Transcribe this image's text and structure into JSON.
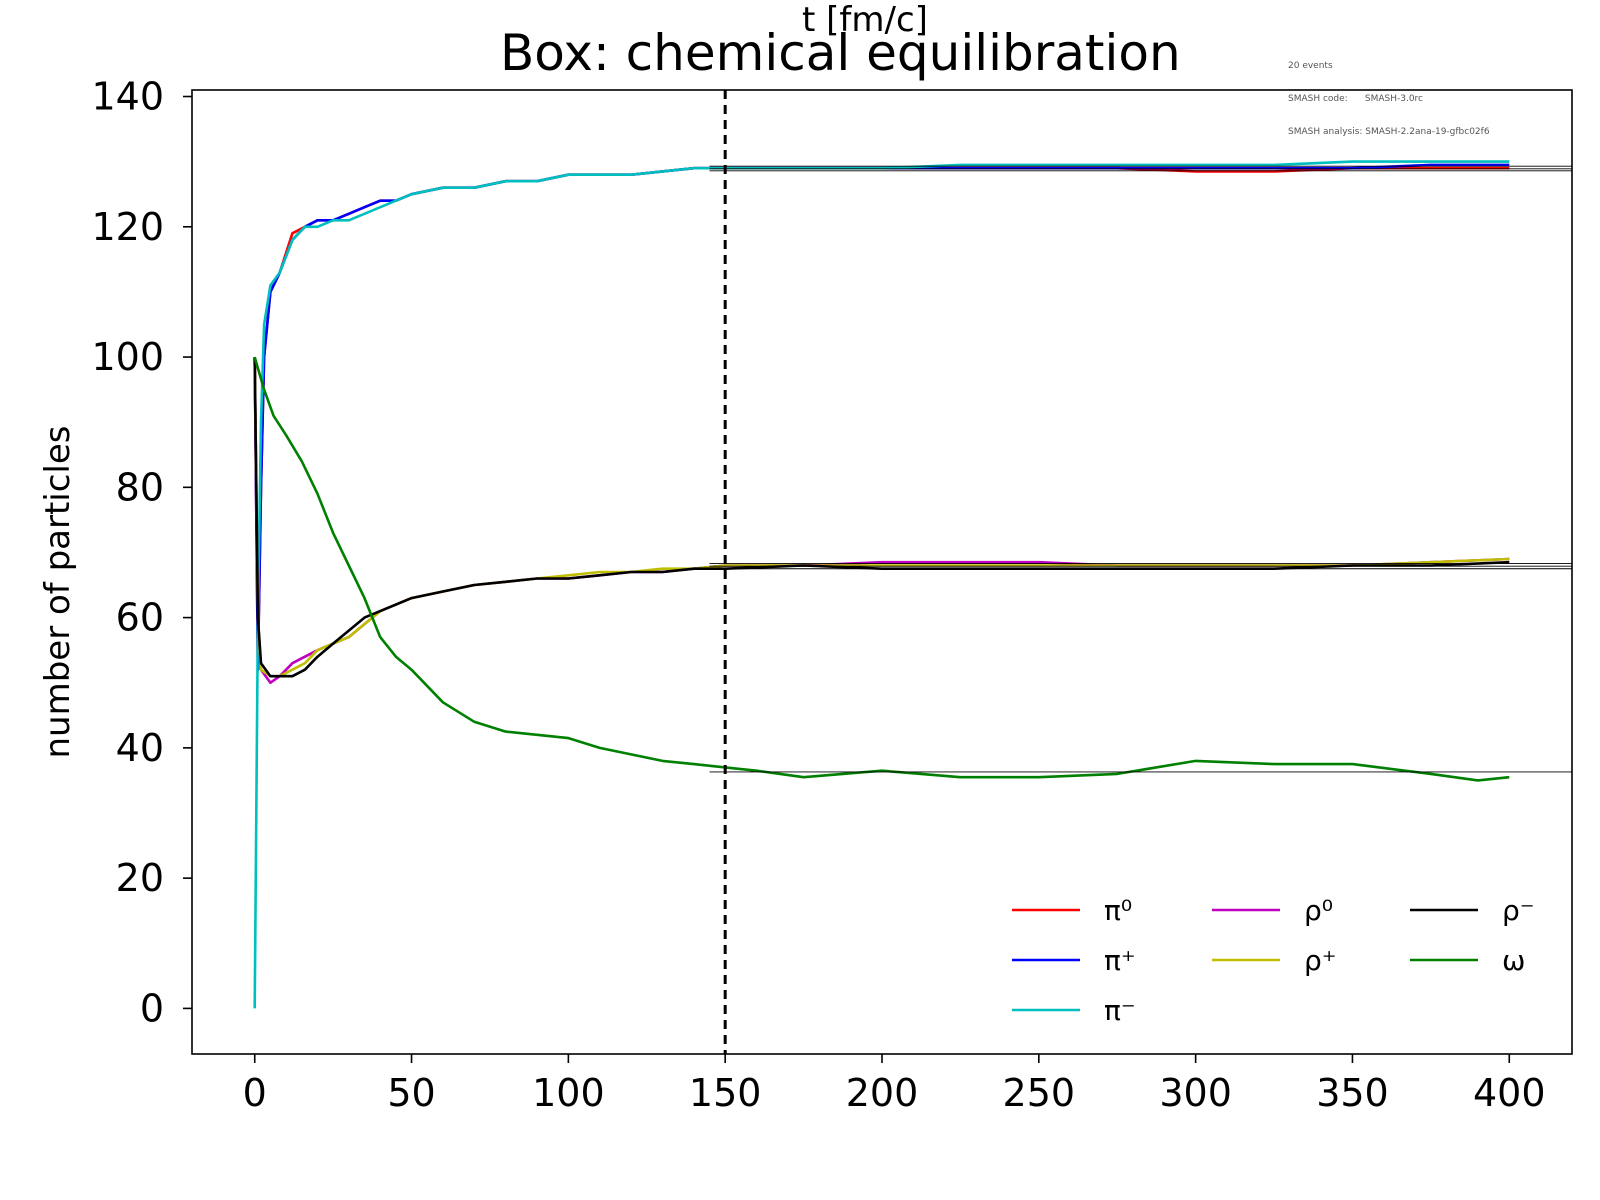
{
  "chart_data": {
    "type": "line",
    "title": "Box: chemical equilibration",
    "info_lines": [
      "20 events",
      "SMASH code:      SMASH-3.0rc",
      "SMASH analysis: SMASH-2.2ana-19-gfbc02f6"
    ],
    "xlabel": "t [fm/c]",
    "ylabel": "number of particles",
    "xlim": [
      -20,
      420
    ],
    "ylim": [
      -7,
      141
    ],
    "xticks": [
      0,
      50,
      100,
      150,
      200,
      250,
      300,
      350,
      400
    ],
    "yticks": [
      0,
      20,
      40,
      60,
      80,
      100,
      120,
      140
    ],
    "grid": false,
    "legend_position": "lower-right",
    "vline": 150,
    "series": [
      {
        "name": "π⁰",
        "color": "#ff0000",
        "values": [
          [
            0,
            100
          ],
          [
            1,
            52
          ],
          [
            2,
            80
          ],
          [
            3,
            100
          ],
          [
            5,
            110
          ],
          [
            8,
            113
          ],
          [
            12,
            119
          ],
          [
            16,
            120
          ],
          [
            20,
            121
          ],
          [
            25,
            121
          ],
          [
            30,
            122
          ],
          [
            35,
            123
          ],
          [
            40,
            124
          ],
          [
            45,
            124
          ],
          [
            50,
            125
          ],
          [
            60,
            126
          ],
          [
            70,
            126
          ],
          [
            80,
            127
          ],
          [
            90,
            127
          ],
          [
            100,
            128
          ],
          [
            110,
            128
          ],
          [
            120,
            128
          ],
          [
            130,
            128.5
          ],
          [
            140,
            129
          ],
          [
            150,
            129
          ],
          [
            175,
            129
          ],
          [
            200,
            129
          ],
          [
            225,
            129
          ],
          [
            250,
            129
          ],
          [
            275,
            129
          ],
          [
            300,
            128.5
          ],
          [
            325,
            128.5
          ],
          [
            350,
            129
          ],
          [
            375,
            129
          ],
          [
            400,
            129
          ]
        ]
      },
      {
        "name": "π⁺",
        "color": "#0000ff",
        "values": [
          [
            0,
            100
          ],
          [
            1,
            52
          ],
          [
            2,
            80
          ],
          [
            3,
            100
          ],
          [
            5,
            110
          ],
          [
            8,
            113
          ],
          [
            12,
            118
          ],
          [
            16,
            120
          ],
          [
            20,
            121
          ],
          [
            25,
            121
          ],
          [
            30,
            122
          ],
          [
            35,
            123
          ],
          [
            40,
            124
          ],
          [
            45,
            124
          ],
          [
            50,
            125
          ],
          [
            60,
            126
          ],
          [
            70,
            126
          ],
          [
            80,
            127
          ],
          [
            90,
            127
          ],
          [
            100,
            128
          ],
          [
            110,
            128
          ],
          [
            120,
            128
          ],
          [
            130,
            128.5
          ],
          [
            140,
            129
          ],
          [
            150,
            129
          ],
          [
            175,
            129
          ],
          [
            200,
            129
          ],
          [
            225,
            129
          ],
          [
            250,
            129
          ],
          [
            275,
            129
          ],
          [
            300,
            129
          ],
          [
            325,
            129
          ],
          [
            350,
            129
          ],
          [
            375,
            129.5
          ],
          [
            400,
            129.5
          ]
        ]
      },
      {
        "name": "π⁻",
        "color": "#00bfbf",
        "values": [
          [
            0,
            0
          ],
          [
            1,
            60
          ],
          [
            2,
            90
          ],
          [
            3,
            105
          ],
          [
            5,
            111
          ],
          [
            8,
            113
          ],
          [
            12,
            118
          ],
          [
            16,
            120
          ],
          [
            20,
            120
          ],
          [
            25,
            121
          ],
          [
            30,
            121
          ],
          [
            35,
            122
          ],
          [
            40,
            123
          ],
          [
            45,
            124
          ],
          [
            50,
            125
          ],
          [
            60,
            126
          ],
          [
            70,
            126
          ],
          [
            80,
            127
          ],
          [
            90,
            127
          ],
          [
            100,
            128
          ],
          [
            110,
            128
          ],
          [
            120,
            128
          ],
          [
            130,
            128.5
          ],
          [
            140,
            129
          ],
          [
            150,
            129
          ],
          [
            175,
            129
          ],
          [
            200,
            129
          ],
          [
            225,
            129.5
          ],
          [
            250,
            129.5
          ],
          [
            275,
            129.5
          ],
          [
            300,
            129.5
          ],
          [
            325,
            129.5
          ],
          [
            350,
            130
          ],
          [
            375,
            130
          ],
          [
            400,
            130
          ]
        ]
      },
      {
        "name": "ρ⁰",
        "color": "#bf00bf",
        "values": [
          [
            0,
            100
          ],
          [
            1,
            60
          ],
          [
            2,
            52
          ],
          [
            5,
            50
          ],
          [
            8,
            51
          ],
          [
            12,
            53
          ],
          [
            16,
            54
          ],
          [
            20,
            55
          ],
          [
            25,
            56
          ],
          [
            30,
            57
          ],
          [
            35,
            59
          ],
          [
            40,
            61
          ],
          [
            45,
            62
          ],
          [
            50,
            63
          ],
          [
            60,
            64
          ],
          [
            70,
            65
          ],
          [
            80,
            65.5
          ],
          [
            90,
            66
          ],
          [
            100,
            66
          ],
          [
            110,
            66.5
          ],
          [
            120,
            67
          ],
          [
            130,
            67
          ],
          [
            140,
            67.5
          ],
          [
            150,
            68
          ],
          [
            175,
            68
          ],
          [
            200,
            68.5
          ],
          [
            225,
            68.5
          ],
          [
            250,
            68.5
          ],
          [
            275,
            68
          ],
          [
            300,
            68
          ],
          [
            325,
            68
          ],
          [
            350,
            68
          ],
          [
            375,
            68.5
          ],
          [
            400,
            69
          ]
        ]
      },
      {
        "name": "ρ⁺",
        "color": "#bfbf00",
        "values": [
          [
            0,
            100
          ],
          [
            1,
            60
          ],
          [
            2,
            52
          ],
          [
            5,
            51
          ],
          [
            8,
            51
          ],
          [
            12,
            52
          ],
          [
            16,
            53
          ],
          [
            20,
            55
          ],
          [
            25,
            56
          ],
          [
            30,
            57
          ],
          [
            35,
            59
          ],
          [
            40,
            61
          ],
          [
            45,
            62
          ],
          [
            50,
            63
          ],
          [
            60,
            64
          ],
          [
            70,
            65
          ],
          [
            80,
            65.5
          ],
          [
            90,
            66
          ],
          [
            100,
            66.5
          ],
          [
            110,
            67
          ],
          [
            120,
            67
          ],
          [
            130,
            67.5
          ],
          [
            140,
            67.5
          ],
          [
            150,
            68
          ],
          [
            175,
            68
          ],
          [
            200,
            68
          ],
          [
            225,
            68
          ],
          [
            250,
            68
          ],
          [
            275,
            68
          ],
          [
            300,
            68
          ],
          [
            325,
            68
          ],
          [
            350,
            68
          ],
          [
            375,
            68.5
          ],
          [
            400,
            69
          ]
        ]
      },
      {
        "name": "ρ⁻",
        "color": "#000000",
        "values": [
          [
            0,
            100
          ],
          [
            1,
            60
          ],
          [
            2,
            53
          ],
          [
            5,
            51
          ],
          [
            8,
            51
          ],
          [
            12,
            51
          ],
          [
            16,
            52
          ],
          [
            20,
            54
          ],
          [
            25,
            56
          ],
          [
            30,
            58
          ],
          [
            35,
            60
          ],
          [
            40,
            61
          ],
          [
            45,
            62
          ],
          [
            50,
            63
          ],
          [
            60,
            64
          ],
          [
            70,
            65
          ],
          [
            80,
            65.5
          ],
          [
            90,
            66
          ],
          [
            100,
            66
          ],
          [
            110,
            66.5
          ],
          [
            120,
            67
          ],
          [
            130,
            67
          ],
          [
            140,
            67.5
          ],
          [
            150,
            67.5
          ],
          [
            175,
            68
          ],
          [
            200,
            67.5
          ],
          [
            225,
            67.5
          ],
          [
            250,
            67.5
          ],
          [
            275,
            67.5
          ],
          [
            300,
            67.5
          ],
          [
            325,
            67.5
          ],
          [
            350,
            68
          ],
          [
            375,
            68
          ],
          [
            400,
            68.5
          ]
        ]
      },
      {
        "name": "ω",
        "color": "#008000",
        "values": [
          [
            0,
            100
          ],
          [
            3,
            95
          ],
          [
            6,
            91
          ],
          [
            10,
            88
          ],
          [
            15,
            84
          ],
          [
            20,
            79
          ],
          [
            25,
            73
          ],
          [
            30,
            68
          ],
          [
            35,
            63
          ],
          [
            40,
            57
          ],
          [
            45,
            54
          ],
          [
            50,
            52
          ],
          [
            60,
            47
          ],
          [
            70,
            44
          ],
          [
            80,
            42.5
          ],
          [
            90,
            42
          ],
          [
            100,
            41.5
          ],
          [
            110,
            40
          ],
          [
            120,
            39
          ],
          [
            130,
            38
          ],
          [
            140,
            37.5
          ],
          [
            150,
            37
          ],
          [
            160,
            36.5
          ],
          [
            175,
            35.5
          ],
          [
            200,
            36.5
          ],
          [
            225,
            35.5
          ],
          [
            250,
            35.5
          ],
          [
            275,
            36
          ],
          [
            300,
            38
          ],
          [
            325,
            37.5
          ],
          [
            350,
            37.5
          ],
          [
            375,
            36
          ],
          [
            390,
            35
          ],
          [
            400,
            35.5
          ]
        ]
      }
    ],
    "equilibrium_lines": [
      {
        "from": 145,
        "to": 420,
        "y": 129.3
      },
      {
        "from": 145,
        "to": 420,
        "y": 128.9
      },
      {
        "from": 145,
        "to": 420,
        "y": 128.6
      },
      {
        "from": 145,
        "to": 420,
        "y": 68.3
      },
      {
        "from": 145,
        "to": 420,
        "y": 67.9
      },
      {
        "from": 145,
        "to": 420,
        "y": 67.5
      },
      {
        "from": 145,
        "to": 420,
        "y": 36.3
      }
    ]
  }
}
